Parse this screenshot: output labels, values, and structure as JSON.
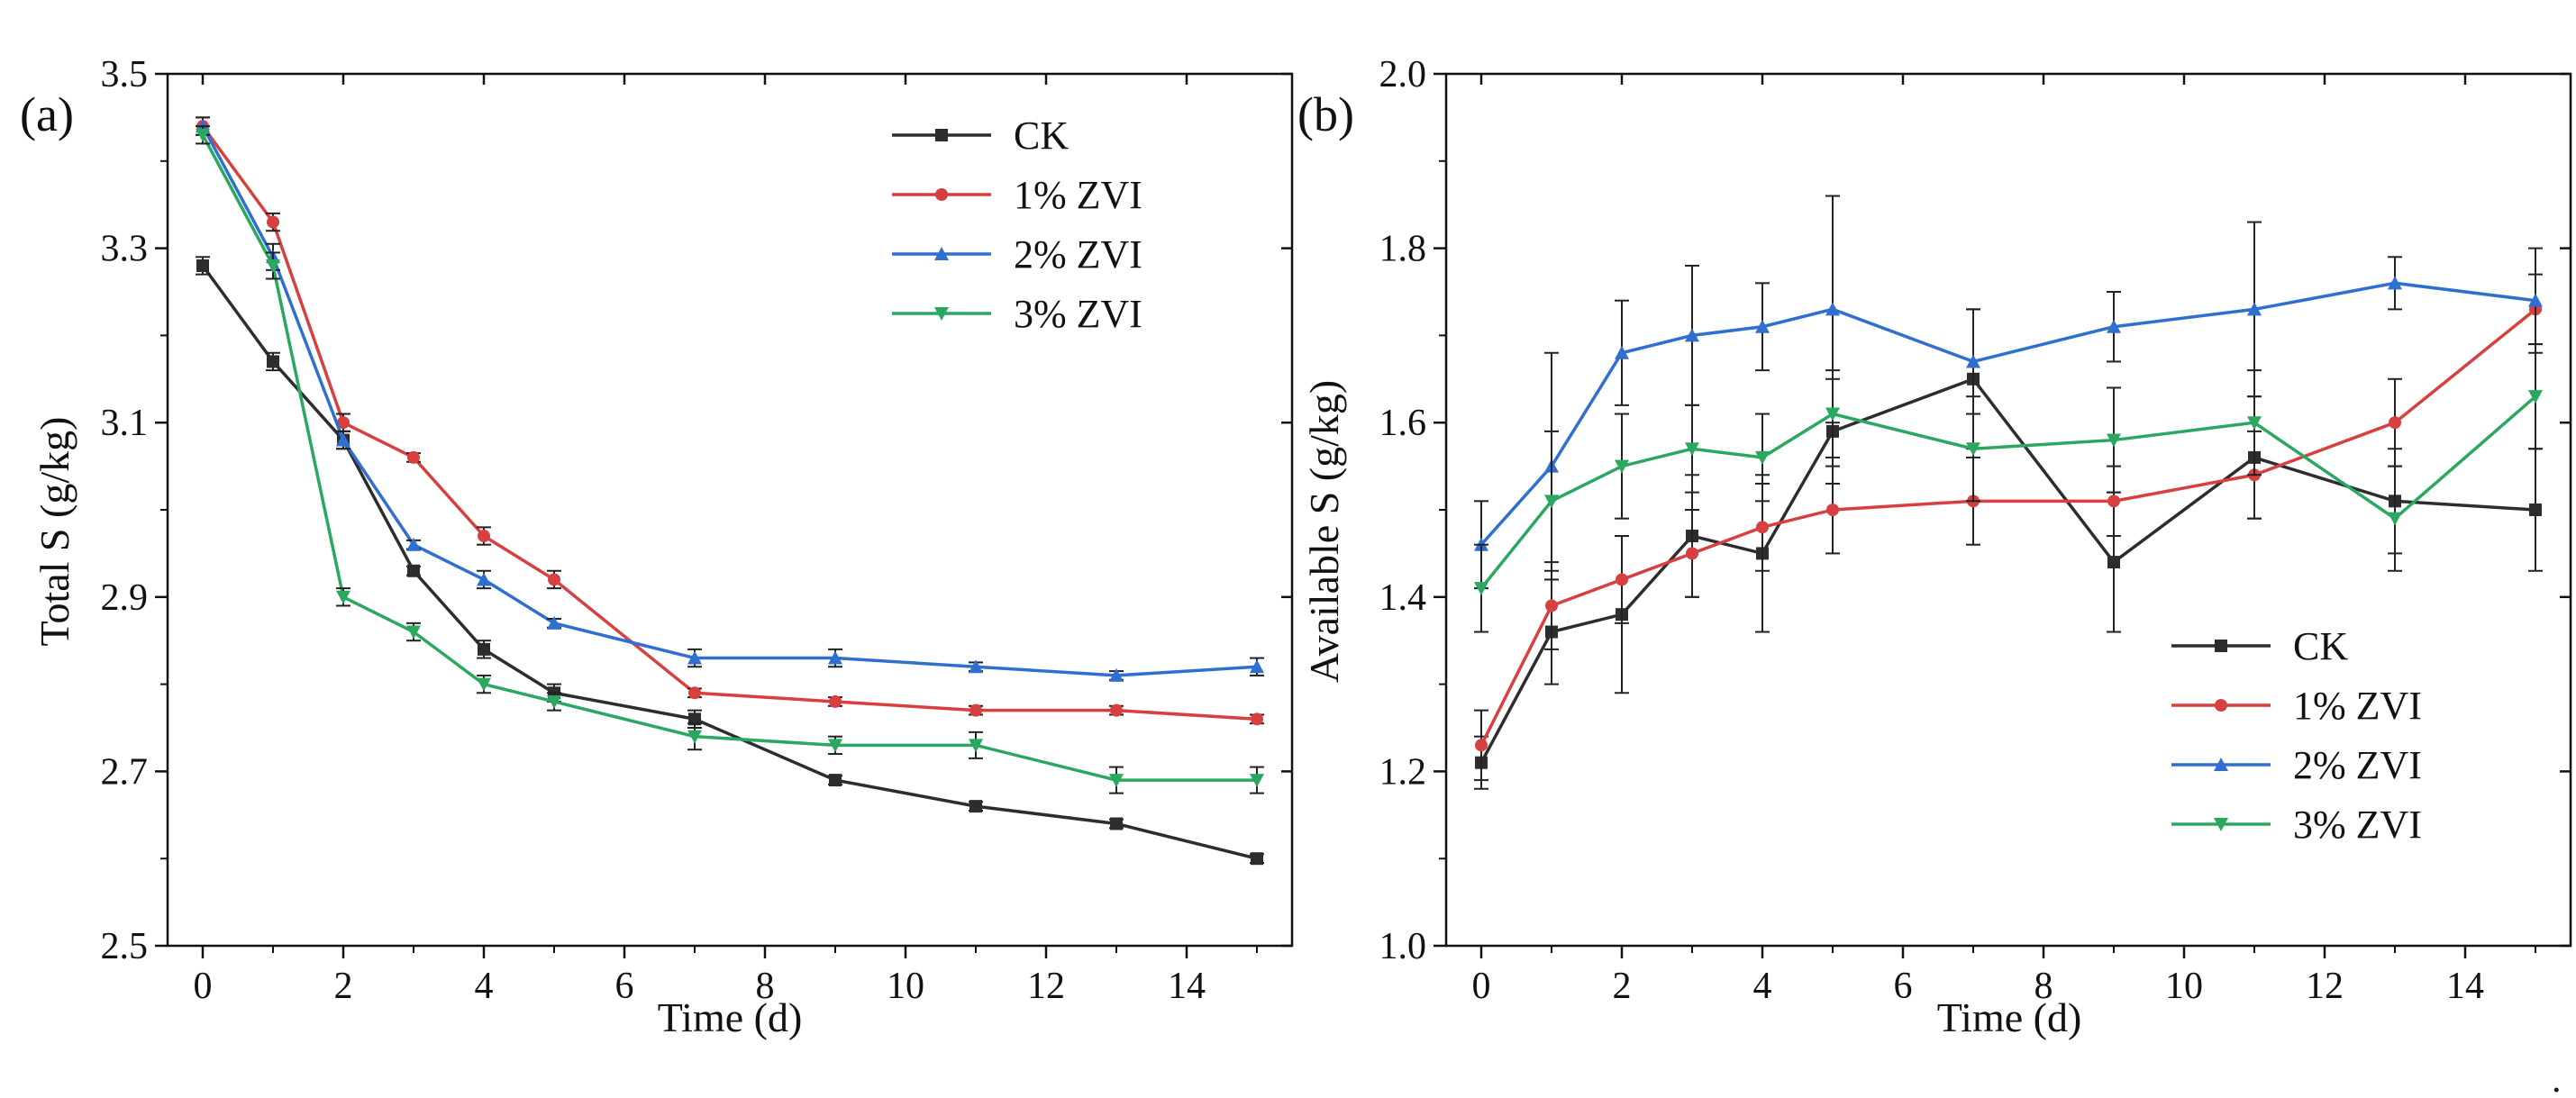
{
  "chart_data": [
    {
      "type": "line",
      "panel_label": "(a)",
      "title": "",
      "xlabel": "Time (d)",
      "ylabel": "Total S (g/kg)",
      "xlim": [
        -0.5,
        15.5
      ],
      "ylim": [
        2.5,
        3.5
      ],
      "xticks": [
        0,
        2,
        4,
        6,
        8,
        10,
        12,
        14
      ],
      "yticks": [
        2.5,
        2.7,
        2.9,
        3.1,
        3.3,
        3.5
      ],
      "ytick_labels": [
        "2.5",
        "2.7",
        "2.9",
        "3.1",
        "3.3",
        "3.5"
      ],
      "legend_position": "top-right",
      "x": [
        0,
        1,
        2,
        3,
        4,
        5,
        7,
        9,
        11,
        13,
        15
      ],
      "series": [
        {
          "name": "CK",
          "color": "#2d2d2d",
          "marker": "square",
          "values": [
            3.28,
            3.17,
            3.08,
            2.93,
            2.84,
            2.79,
            2.76,
            2.69,
            2.66,
            2.64,
            2.6
          ],
          "errors": [
            0.01,
            0.01,
            0.01,
            0.005,
            0.01,
            0.01,
            0.01,
            0.005,
            0.005,
            0.005,
            0.005
          ]
        },
        {
          "name": "1% ZVI",
          "color": "#d84040",
          "marker": "circle",
          "values": [
            3.44,
            3.33,
            3.1,
            3.06,
            2.97,
            2.92,
            2.79,
            2.78,
            2.77,
            2.77,
            2.76
          ],
          "errors": [
            0.01,
            0.01,
            0.01,
            0.005,
            0.01,
            0.01,
            0.005,
            0.005,
            0.005,
            0.005,
            0.005
          ]
        },
        {
          "name": "2% ZVI",
          "color": "#2f6fcf",
          "marker": "triangle-up",
          "values": [
            3.44,
            3.29,
            3.08,
            2.96,
            2.92,
            2.87,
            2.83,
            2.83,
            2.82,
            2.81,
            2.82
          ],
          "errors": [
            0.01,
            0.015,
            0.01,
            0.005,
            0.01,
            0.005,
            0.01,
            0.01,
            0.005,
            0.005,
            0.01
          ]
        },
        {
          "name": "3% ZVI",
          "color": "#2aa860",
          "marker": "triangle-down",
          "values": [
            3.43,
            3.28,
            2.9,
            2.86,
            2.8,
            2.78,
            2.74,
            2.73,
            2.73,
            2.69,
            2.69
          ],
          "errors": [
            0.01,
            0.015,
            0.01,
            0.01,
            0.01,
            0.01,
            0.015,
            0.01,
            0.015,
            0.015,
            0.015
          ]
        }
      ]
    },
    {
      "type": "line",
      "panel_label": "(b)",
      "title": "",
      "xlabel": "Time (d)",
      "ylabel": "Available S (g/kg)",
      "xlim": [
        -0.5,
        15.5
      ],
      "ylim": [
        1.0,
        2.0
      ],
      "xticks": [
        0,
        2,
        4,
        6,
        8,
        10,
        12,
        14
      ],
      "yticks": [
        1.0,
        1.2,
        1.4,
        1.6,
        1.8,
        2.0
      ],
      "ytick_labels": [
        "1.0",
        "1.2",
        "1.4",
        "1.6",
        "1.8",
        "2.0"
      ],
      "legend_position": "bottom-right",
      "x": [
        0,
        1,
        2,
        3,
        4,
        5,
        7,
        9,
        11,
        13,
        15
      ],
      "series": [
        {
          "name": "CK",
          "color": "#2d2d2d",
          "marker": "square",
          "values": [
            1.21,
            1.36,
            1.38,
            1.47,
            1.45,
            1.59,
            1.65,
            1.44,
            1.56,
            1.51,
            1.5
          ],
          "errors": [
            0.03,
            0.06,
            0.09,
            0.07,
            0.09,
            0.06,
            0.08,
            0.08,
            0.07,
            0.06,
            0.07
          ]
        },
        {
          "name": "1% ZVI",
          "color": "#d84040",
          "marker": "circle",
          "values": [
            1.23,
            1.39,
            1.42,
            1.45,
            1.48,
            1.5,
            1.51,
            1.51,
            1.54,
            1.6,
            1.73
          ],
          "errors": [
            0.04,
            0.05,
            0.05,
            0.05,
            0.05,
            0.05,
            0.05,
            0.04,
            0.05,
            0.05,
            0.04
          ]
        },
        {
          "name": "2% ZVI",
          "color": "#2f6fcf",
          "marker": "triangle-up",
          "values": [
            1.46,
            1.55,
            1.68,
            1.7,
            1.71,
            1.73,
            1.67,
            1.71,
            1.73,
            1.76,
            1.74
          ],
          "errors": [
            0.05,
            0.13,
            0.06,
            0.08,
            0.05,
            0.13,
            0.06,
            0.04,
            0.1,
            0.03,
            0.06
          ]
        },
        {
          "name": "3% ZVI",
          "color": "#2aa860",
          "marker": "triangle-down",
          "values": [
            1.41,
            1.51,
            1.55,
            1.57,
            1.56,
            1.61,
            1.57,
            1.58,
            1.6,
            1.49,
            1.63
          ],
          "errors": [
            0.05,
            0.08,
            0.06,
            0.05,
            0.05,
            0.05,
            0.06,
            0.06,
            0.06,
            0.06,
            0.06
          ]
        }
      ]
    }
  ]
}
